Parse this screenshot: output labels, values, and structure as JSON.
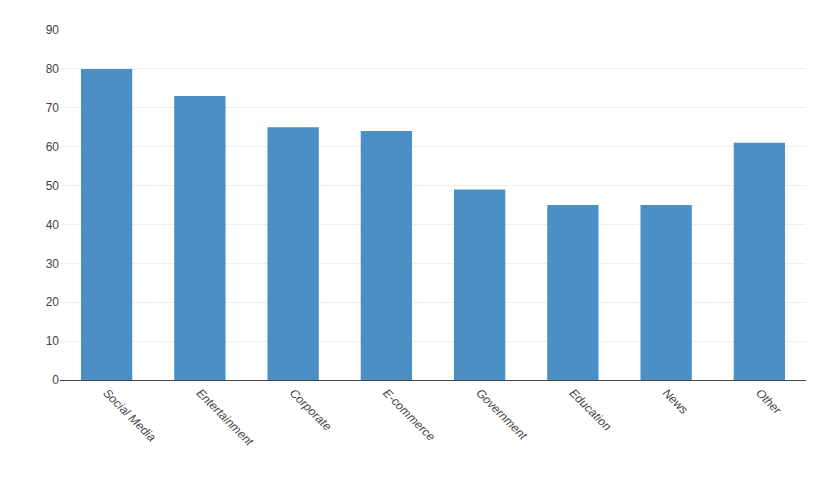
{
  "chart_data": {
    "type": "bar",
    "categories": [
      "Social Media",
      "Entertainment",
      "Corporate",
      "E-commerce",
      "Government",
      "Education",
      "News",
      "Other"
    ],
    "values": [
      80,
      73,
      65,
      64,
      49,
      45,
      45,
      61
    ],
    "color": "#4A90C4",
    "ylim": [
      0,
      90
    ],
    "yticks": [
      0,
      10,
      20,
      30,
      40,
      50,
      60,
      70,
      80,
      90
    ],
    "grid": true
  }
}
